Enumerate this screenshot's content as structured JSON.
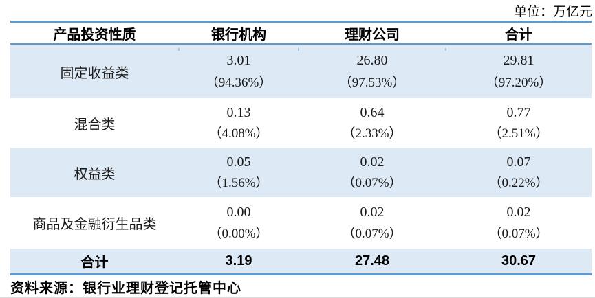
{
  "unit_label": "单位：万亿元",
  "table": {
    "columns": [
      "产品投资性质",
      "银行机构",
      "理财公司",
      "合计"
    ],
    "rows": [
      {
        "label": "固定收益类",
        "values": [
          "3.01",
          "26.80",
          "29.81"
        ],
        "pcts": [
          "（94.36%）",
          "（97.53%）",
          "（97.20%）"
        ]
      },
      {
        "label": "混合类",
        "values": [
          "0.13",
          "0.64",
          "0.77"
        ],
        "pcts": [
          "（4.08%）",
          "（2.33%）",
          "（2.51%）"
        ]
      },
      {
        "label": "权益类",
        "values": [
          "0.05",
          "0.02",
          "0.07"
        ],
        "pcts": [
          "（1.56%）",
          "（0.07%）",
          "（0.22%）"
        ]
      },
      {
        "label": "商品及金融衍生品类",
        "values": [
          "0.00",
          "0.02",
          "0.02"
        ],
        "pcts": [
          "（0.00%）",
          "（0.07%）",
          "（0.07%）"
        ]
      }
    ],
    "total": {
      "label": "合计",
      "values": [
        "3.19",
        "27.48",
        "30.67"
      ]
    }
  },
  "source_note": "资料来源：银行业理财登记托管中心",
  "colors": {
    "accent_blue": "#5B9BD5",
    "band_blue": "#DDE9F5",
    "text_black": "#000000"
  }
}
